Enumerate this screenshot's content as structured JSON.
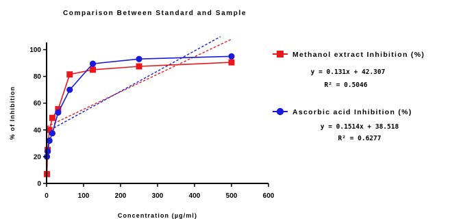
{
  "chart_data": {
    "type": "line",
    "title": "Comparison Between Standard and Sample",
    "xlabel": "Concentration (µg/ml)",
    "ylabel": "% of Inhibition",
    "xlim": [
      0,
      600
    ],
    "ylim": [
      0,
      110
    ],
    "x_ticks": [
      "0",
      "100",
      "200",
      "300",
      "400",
      "500",
      "600"
    ],
    "y_ticks": [
      "0",
      "20",
      "40",
      "60",
      "80",
      "100"
    ],
    "grid": false,
    "legend_position": "right",
    "series": [
      {
        "name": "Methanol extract Inhibition (%)",
        "color": "#e8191d",
        "marker": "square",
        "x": [
          1,
          3,
          7.8,
          15.6,
          31.25,
          62.5,
          125,
          250,
          500
        ],
        "y": [
          7,
          25,
          40,
          49,
          55.5,
          81.5,
          85,
          87.5,
          90.5
        ],
        "trendline": {
          "slope": 0.131,
          "intercept": 42.307,
          "x_range": [
            0,
            500
          ]
        },
        "equation": "y = 0.131x + 42.307",
        "r_squared": "R² = 0.5046"
      },
      {
        "name": "Ascorbic acid Inhibition (%)",
        "color": "#1a1adb",
        "marker": "circle",
        "x": [
          1,
          3,
          7.8,
          15.6,
          31.25,
          62.5,
          125,
          250,
          500
        ],
        "y": [
          20,
          24,
          32,
          37.5,
          53,
          70,
          89.5,
          93,
          95
        ],
        "trendline": {
          "slope": 0.1514,
          "intercept": 38.518,
          "x_range": [
            0,
            470
          ]
        },
        "equation": "y = 0.1514x + 38.518",
        "r_squared": "R² = 0.6277"
      }
    ]
  }
}
